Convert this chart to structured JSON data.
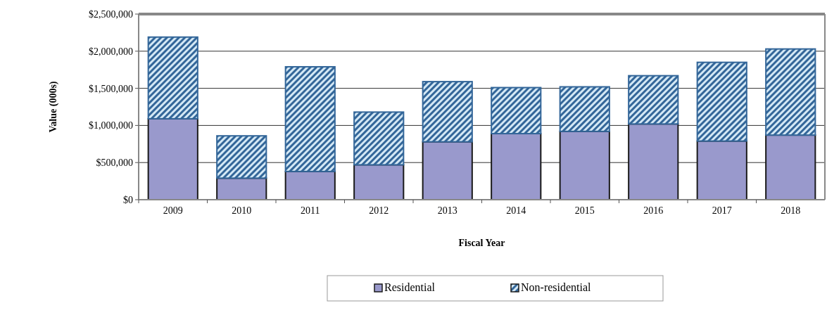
{
  "chart_data": {
    "type": "bar",
    "stacked": true,
    "xlabel": "Fiscal Year",
    "ylabel": "Value (000s)",
    "categories": [
      "2009",
      "2010",
      "2011",
      "2012",
      "2013",
      "2014",
      "2015",
      "2016",
      "2017",
      "2018"
    ],
    "series": [
      {
        "name": "Residential",
        "color": "#9999cc",
        "values": [
          1090000,
          290000,
          380000,
          470000,
          780000,
          890000,
          920000,
          1020000,
          790000,
          870000
        ]
      },
      {
        "name": "Non-residential",
        "color": "#336699",
        "values": [
          1100000,
          570000,
          1410000,
          710000,
          810000,
          620000,
          600000,
          650000,
          1060000,
          1160000
        ]
      }
    ],
    "ylim": [
      0,
      2500000
    ],
    "yticks": [
      {
        "value": 0,
        "label": "$0"
      },
      {
        "value": 500000,
        "label": "$500,000"
      },
      {
        "value": 1000000,
        "label": "$1,000,000"
      },
      {
        "value": 1500000,
        "label": "$1,500,000"
      },
      {
        "value": 2000000,
        "label": "$2,000,000"
      },
      {
        "value": 2500000,
        "label": "$2,500,000"
      }
    ],
    "grid": "y",
    "legend": "bottom"
  }
}
